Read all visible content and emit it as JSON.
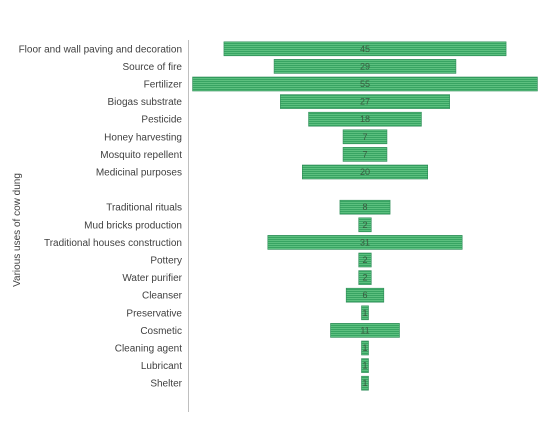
{
  "chart_data": {
    "type": "bar",
    "orientation": "horizontal",
    "layout": "centered-funnel",
    "ylabel": "Various uses of cow dung",
    "xlabel": "",
    "title": "",
    "bar_color": "#3cb371",
    "grid": false,
    "legend": "none",
    "categories": [
      "Floor and wall paving and decoration",
      "Source of fire",
      "Fertilizer",
      "Biogas substrate",
      "Pesticide",
      "Honey harvesting",
      "Mosquito repellent",
      "Medicinal purposes",
      "",
      "Traditional rituals",
      "Mud bricks production",
      "Traditional houses construction",
      "Pottery",
      "Water purifier",
      "Cleanser",
      "Preservative",
      "Cosmetic",
      "Cleaning agent",
      "Lubricant",
      "Shelter"
    ],
    "values": [
      45,
      29,
      55,
      27,
      18,
      7,
      7,
      20,
      null,
      8,
      2,
      31,
      2,
      2,
      6,
      1,
      11,
      1,
      1,
      1
    ],
    "value_labels": [
      "45",
      "29",
      "55",
      "27",
      "18",
      "7",
      "7",
      "20",
      "",
      "8",
      "2",
      "31",
      "2",
      "2",
      "6",
      "1",
      "11",
      "1",
      "1",
      "1"
    ]
  }
}
